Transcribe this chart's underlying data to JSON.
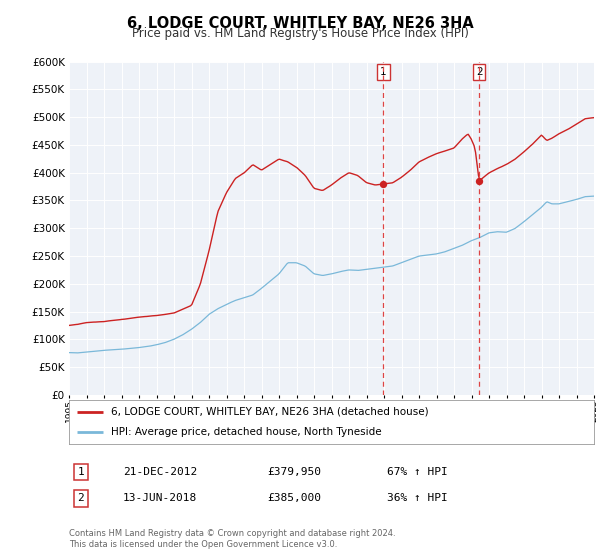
{
  "title": "6, LODGE COURT, WHITLEY BAY, NE26 3HA",
  "subtitle": "Price paid vs. HM Land Registry's House Price Index (HPI)",
  "legend_line1": "6, LODGE COURT, WHITLEY BAY, NE26 3HA (detached house)",
  "legend_line2": "HPI: Average price, detached house, North Tyneside",
  "transaction1_date": "21-DEC-2012",
  "transaction1_price": "£379,950",
  "transaction1_hpi": "67% ↑ HPI",
  "transaction1_year": 2012.97,
  "transaction1_value": 379950,
  "transaction2_date": "13-JUN-2018",
  "transaction2_price": "£385,000",
  "transaction2_hpi": "36% ↑ HPI",
  "transaction2_year": 2018.44,
  "transaction2_value": 385000,
  "footer1": "Contains HM Land Registry data © Crown copyright and database right 2024.",
  "footer2": "This data is licensed under the Open Government Licence v3.0.",
  "ylim_max": 600000,
  "ylim_min": 0,
  "xlim_min": 1995,
  "xlim_max": 2025,
  "hpi_color": "#7ab8d9",
  "price_color": "#cc2222",
  "vline_color": "#dd4444",
  "bg_color": "#eef2f8",
  "fig_bg": "#ffffff"
}
